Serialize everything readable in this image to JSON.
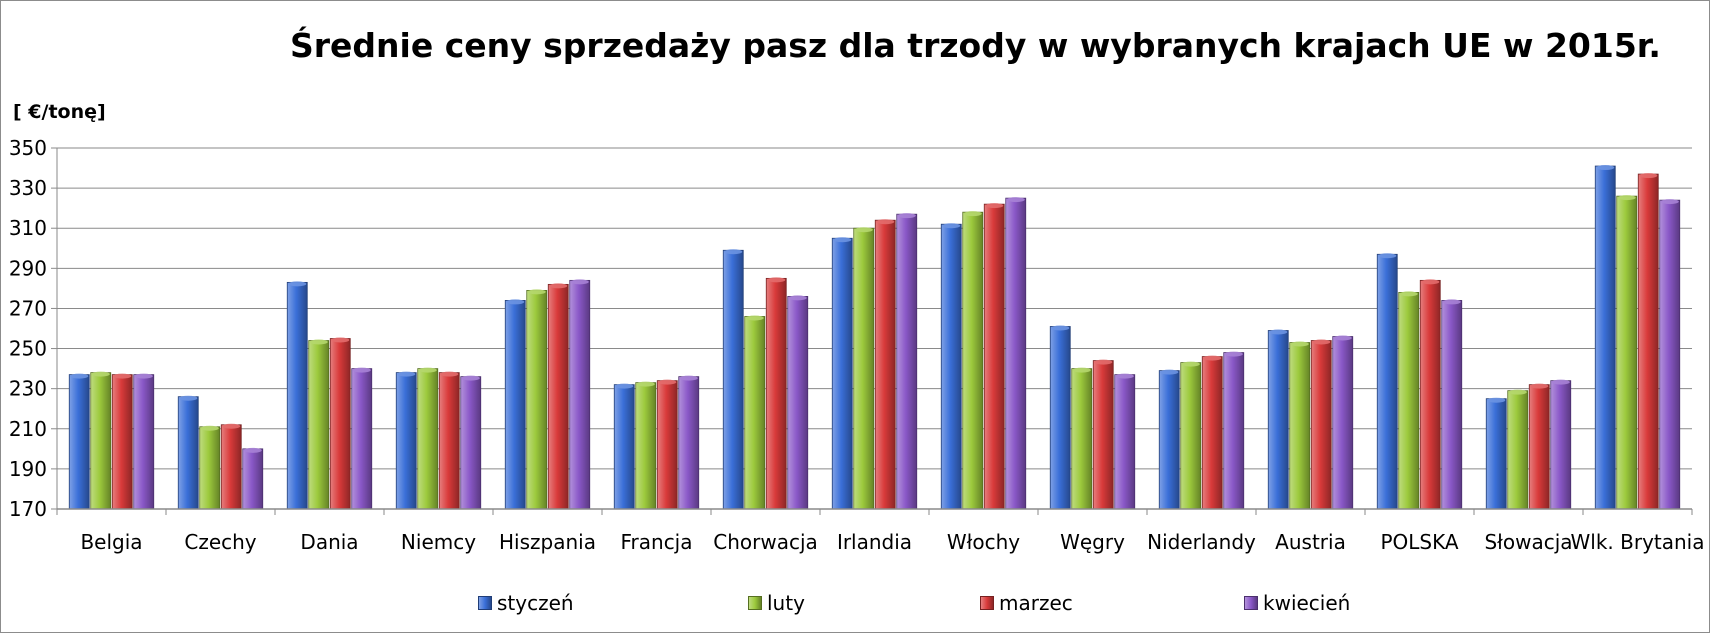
{
  "chart_data": {
    "type": "bar",
    "title": "Średnie ceny sprzedaży pasz dla trzody w wybranych krajach UE w 2015r.",
    "ylabel": "[ €/tonę]",
    "xlabel": "",
    "ylim": [
      170,
      350
    ],
    "yticks": [
      "170",
      "190",
      "210",
      "230",
      "250",
      "270",
      "290",
      "310",
      "330",
      "350"
    ],
    "grid": true,
    "legend_position": "bottom",
    "categories": [
      "Belgia",
      "Czechy",
      "Dania",
      "Niemcy",
      "Hiszpania",
      "Francja",
      "Chorwacja",
      "Irlandia",
      "Włochy",
      "Węgry",
      "Niderlandy",
      "Austria",
      "POLSKA",
      "Słowacja",
      "Wlk. Brytania"
    ],
    "series": [
      {
        "name": "styczeń",
        "color": "#3a6fd8",
        "values": [
          237,
          226,
          283,
          238,
          274,
          232,
          299,
          305,
          312,
          261,
          239,
          259,
          297,
          225,
          341
        ]
      },
      {
        "name": "luty",
        "color": "#9cc93c",
        "values": [
          238,
          211,
          254,
          240,
          279,
          233,
          266,
          310,
          318,
          240,
          243,
          253,
          278,
          229,
          326
        ]
      },
      {
        "name": "marzec",
        "color": "#d93a3a",
        "values": [
          237,
          212,
          255,
          238,
          282,
          234,
          285,
          314,
          322,
          244,
          246,
          254,
          284,
          232,
          337
        ]
      },
      {
        "name": "kwiecień",
        "color": "#8a58c8",
        "values": [
          237,
          200,
          240,
          236,
          284,
          236,
          276,
          317,
          325,
          237,
          248,
          256,
          274,
          234,
          324
        ]
      }
    ]
  }
}
